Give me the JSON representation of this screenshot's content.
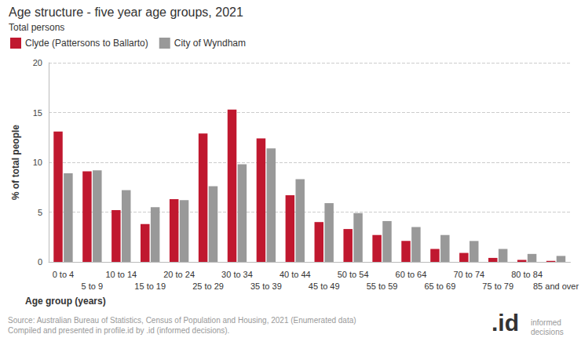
{
  "chart_data": {
    "type": "bar",
    "title": "Age structure - five year age groups, 2021",
    "subtitle": "Total persons",
    "x_label": "Age group (years)",
    "y_label": "% of total people",
    "categories": [
      "0 to 4",
      "5 to 9",
      "10 to 14",
      "15 to 19",
      "20 to 24",
      "25 to 29",
      "30 to 34",
      "35 to 39",
      "40 to 44",
      "45 to 49",
      "50 to 54",
      "55 to 59",
      "60 to 64",
      "65 to 69",
      "70 to 74",
      "75 to 79",
      "80 to 84",
      "85 and over"
    ],
    "series": [
      {
        "name": "Clyde (Pattersons to Ballarto)",
        "color": "#c0182f",
        "values": [
          13.1,
          9.1,
          5.2,
          3.8,
          6.3,
          12.9,
          15.3,
          12.4,
          6.7,
          4.0,
          3.3,
          2.7,
          2.1,
          1.3,
          0.9,
          0.4,
          0.2,
          0.1
        ]
      },
      {
        "name": "City of Wyndham",
        "color": "#999999",
        "values": [
          8.9,
          9.2,
          7.2,
          5.5,
          6.2,
          7.6,
          9.8,
          11.4,
          8.3,
          5.9,
          4.9,
          4.1,
          3.5,
          2.7,
          2.1,
          1.3,
          0.8,
          0.6
        ]
      }
    ],
    "ylim": [
      0,
      20
    ],
    "yticks": [
      0,
      5,
      10,
      15,
      20
    ],
    "grid": true,
    "legend": "top-left",
    "source": [
      "Source: Australian Bureau of Statistics, Census of Population and Housing, 2021 (Enumerated data)",
      "Compiled and presented in profile.id by .id (informed decisions)."
    ],
    "logo": {
      "mark": ".id",
      "text": [
        "informed",
        "decisions"
      ]
    }
  }
}
